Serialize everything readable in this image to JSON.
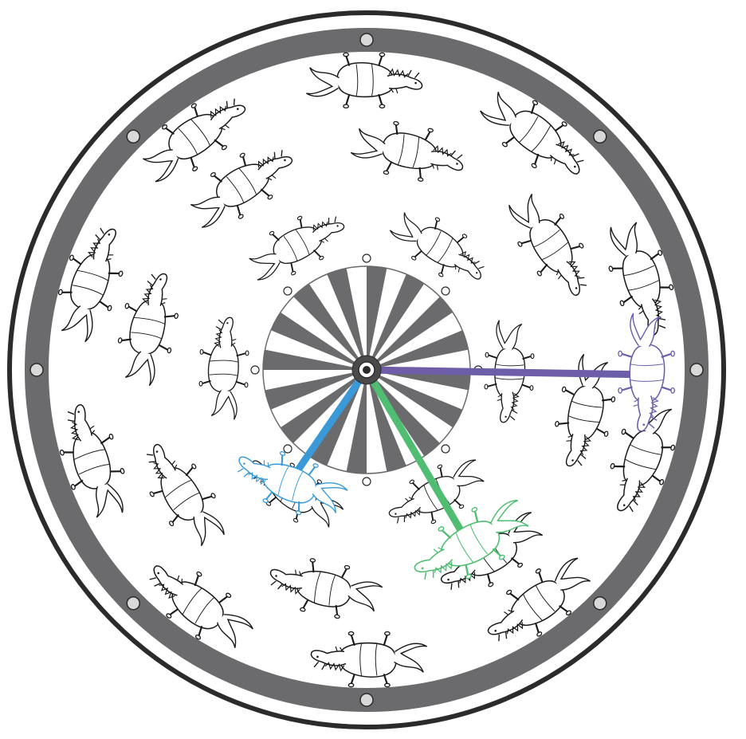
{
  "title": "",
  "colors": {
    "outline": "#2b2b2b",
    "rim": "#6b6b6e",
    "spoke_dark": "#6b6b6e",
    "horse_ink": "#1a1a1a",
    "hand_short": "#3a9ad9",
    "hand_medium": "#4fbd72",
    "hand_long": "#6e5eaa"
  },
  "wheel": {
    "rim_bolts": 8,
    "inner_bolts": 8,
    "center_segments": 32
  },
  "rings": [
    {
      "name": "inner",
      "horse_count": 6,
      "icon": "horse-icon"
    },
    {
      "name": "middle",
      "horse_count": 8,
      "icon": "horse-icon"
    },
    {
      "name": "outer",
      "horse_count": 10,
      "icon": "horse-icon"
    }
  ],
  "hands": [
    {
      "name": "short",
      "color": "#3a9ad9",
      "icon": "horse-icon"
    },
    {
      "name": "medium",
      "color": "#4fbd72",
      "icon": "horse-icon"
    },
    {
      "name": "long",
      "color": "#6e5eaa",
      "icon": "horse-icon"
    }
  ]
}
